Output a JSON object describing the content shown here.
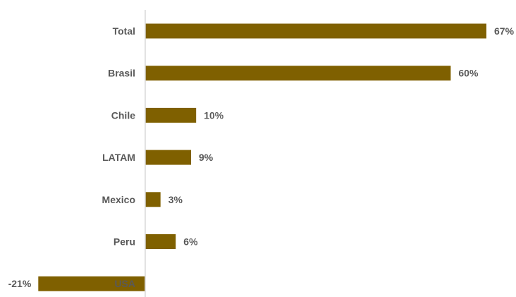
{
  "chart_data": {
    "type": "bar",
    "orientation": "horizontal",
    "title": "",
    "xlabel": "",
    "ylabel": "",
    "categories": [
      "Total",
      "Brasil",
      "Chile",
      "LATAM",
      "Mexico",
      "Peru",
      "USA"
    ],
    "values": [
      67,
      60,
      10,
      9,
      3,
      6,
      -21
    ],
    "value_labels": [
      "67%",
      "60%",
      "10%",
      "9%",
      "3%",
      "6%",
      "-21%"
    ],
    "xlim": [
      -21,
      67
    ],
    "grid": false,
    "legend": "none",
    "colors": {
      "bar": "#7F6000",
      "text": "#595959",
      "axis": "#D9D9D9"
    }
  }
}
